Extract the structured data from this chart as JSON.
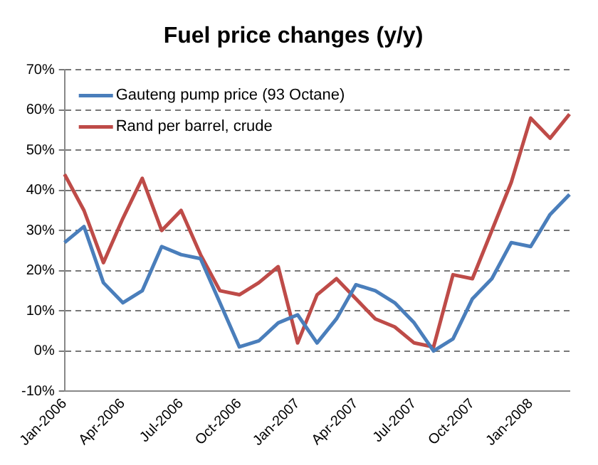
{
  "chart_data": {
    "type": "line",
    "title": "Fuel price changes (y/y)",
    "categories": [
      "Jan-2006",
      null,
      null,
      "Apr-2006",
      null,
      null,
      "Jul-2006",
      null,
      null,
      "Oct-2006",
      null,
      null,
      "Jan-2007",
      null,
      null,
      "Apr-2007",
      null,
      null,
      "Jul-2007",
      null,
      null,
      "Oct-2007",
      null,
      null,
      "Jan-2008",
      null,
      null
    ],
    "series": [
      {
        "name": "Gauteng pump price (93 Octane)",
        "color": "#4a7ebb",
        "values": [
          27,
          31,
          17,
          12,
          15,
          26,
          24,
          23,
          12,
          1,
          2.5,
          7,
          9,
          2,
          8,
          16.5,
          15,
          12,
          7,
          0,
          3,
          13,
          18,
          27,
          26,
          34,
          39
        ]
      },
      {
        "name": "Rand per barrel, crude",
        "color": "#be4b48",
        "values": [
          44,
          35,
          22,
          33,
          43,
          30,
          35,
          24,
          15,
          14,
          17,
          21,
          2,
          14,
          18,
          13,
          8,
          6,
          2,
          1,
          19,
          18,
          30,
          42,
          58,
          53,
          59
        ]
      }
    ],
    "ylim": [
      -10,
      70
    ],
    "yticks": [
      {
        "value": -10,
        "label": "-10%"
      },
      {
        "value": 0,
        "label": "0%"
      },
      {
        "value": 10,
        "label": "10%"
      },
      {
        "value": 20,
        "label": "20%"
      },
      {
        "value": 30,
        "label": "30%"
      },
      {
        "value": 40,
        "label": "40%"
      },
      {
        "value": 50,
        "label": "50%"
      },
      {
        "value": 60,
        "label": "60%"
      },
      {
        "value": 70,
        "label": "70%"
      }
    ],
    "grid": "y",
    "legend": "top left",
    "marker": "none",
    "line_style": "solid"
  }
}
